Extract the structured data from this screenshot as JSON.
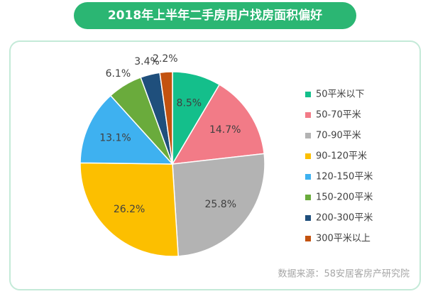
{
  "chart_data": {
    "type": "pie",
    "title": "2018年上半年二手房用户找房面积偏好",
    "source": "数据来源：58安居客房产研究院",
    "categories": [
      "50平米以下",
      "50-70平米",
      "70-90平米",
      "90-120平米",
      "120-150平米",
      "150-200平米",
      "200-300平米",
      "300平米以上"
    ],
    "values": [
      8.5,
      14.7,
      25.8,
      26.2,
      13.1,
      6.1,
      3.4,
      2.2
    ],
    "value_labels": [
      "8.5%",
      "14.7%",
      "25.8%",
      "26.2%",
      "13.1%",
      "6.1%",
      "3.4%",
      "2.2%"
    ],
    "colors": [
      "#14bf8b",
      "#f27b87",
      "#b3b3b3",
      "#fcbf00",
      "#3eb1f0",
      "#6aab3c",
      "#1f4f7c",
      "#c3520f"
    ]
  }
}
